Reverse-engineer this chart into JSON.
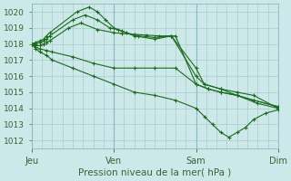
{
  "title": "Pression niveau de la mer( hPa )",
  "bg_color": "#cce8e8",
  "grid_color": "#aacccc",
  "line_color": "#1a6b1a",
  "ylim": [
    1011.5,
    1020.5
  ],
  "yticks": [
    1012,
    1013,
    1014,
    1015,
    1016,
    1017,
    1018,
    1019,
    1020
  ],
  "xtick_labels": [
    "Jeu",
    "Ven",
    "Sam",
    "Dim"
  ],
  "xtick_positions": [
    0,
    1,
    2,
    3
  ],
  "series": [
    {
      "x": [
        0.0,
        0.05,
        0.1,
        0.15,
        0.18,
        0.22,
        0.55,
        0.7,
        0.8,
        0.9,
        1.0,
        1.1,
        1.25,
        1.5,
        1.7,
        2.0,
        2.1,
        2.3,
        2.5,
        2.7,
        3.0
      ],
      "y": [
        1018.0,
        1018.1,
        1018.2,
        1018.3,
        1018.5,
        1018.7,
        1020.0,
        1020.3,
        1020.0,
        1019.5,
        1019.0,
        1018.8,
        1018.5,
        1018.3,
        1018.5,
        1016.5,
        1015.5,
        1015.2,
        1015.0,
        1014.8,
        1014.0
      ]
    },
    {
      "x": [
        0.0,
        0.05,
        0.1,
        0.15,
        0.18,
        0.22,
        0.5,
        0.65,
        0.8,
        0.95,
        1.05,
        1.15,
        1.3,
        1.5,
        1.7,
        2.0,
        2.1,
        2.3,
        2.5,
        2.7,
        3.0
      ],
      "y": [
        1018.0,
        1018.0,
        1018.1,
        1018.2,
        1018.3,
        1018.5,
        1019.5,
        1019.8,
        1019.5,
        1019.0,
        1018.9,
        1018.7,
        1018.5,
        1018.4,
        1018.5,
        1016.0,
        1015.5,
        1015.2,
        1014.8,
        1014.5,
        1014.1
      ]
    },
    {
      "x": [
        0.0,
        0.05,
        0.1,
        0.15,
        0.18,
        0.22,
        0.45,
        0.6,
        0.8,
        1.0,
        1.1,
        1.25,
        1.4,
        1.55,
        1.75,
        2.0,
        2.15,
        2.3,
        2.5,
        2.7,
        3.0
      ],
      "y": [
        1018.0,
        1017.9,
        1017.9,
        1018.0,
        1018.1,
        1018.2,
        1019.0,
        1019.3,
        1018.9,
        1018.7,
        1018.65,
        1018.6,
        1018.55,
        1018.5,
        1018.5,
        1015.5,
        1015.2,
        1015.0,
        1014.8,
        1014.5,
        1014.1
      ]
    },
    {
      "x": [
        0.0,
        0.05,
        0.1,
        0.18,
        0.25,
        0.5,
        0.75,
        1.0,
        1.25,
        1.5,
        1.75,
        2.0,
        2.15,
        2.3,
        2.5,
        2.75,
        3.0
      ],
      "y": [
        1018.0,
        1017.8,
        1017.7,
        1017.6,
        1017.5,
        1017.2,
        1016.8,
        1016.5,
        1016.5,
        1016.5,
        1016.5,
        1015.5,
        1015.2,
        1015.0,
        1014.8,
        1014.3,
        1014.0
      ]
    },
    {
      "x": [
        0.0,
        0.05,
        0.1,
        0.18,
        0.25,
        0.5,
        0.75,
        1.0,
        1.25,
        1.5,
        1.75,
        2.0,
        2.1,
        2.2,
        2.3,
        2.4,
        2.5,
        2.6,
        2.7,
        2.85,
        3.0
      ],
      "y": [
        1018.0,
        1017.7,
        1017.5,
        1017.3,
        1017.0,
        1016.5,
        1016.0,
        1015.5,
        1015.0,
        1014.8,
        1014.5,
        1014.0,
        1013.5,
        1013.0,
        1012.5,
        1012.2,
        1012.5,
        1012.8,
        1013.3,
        1013.7,
        1013.9
      ]
    }
  ]
}
